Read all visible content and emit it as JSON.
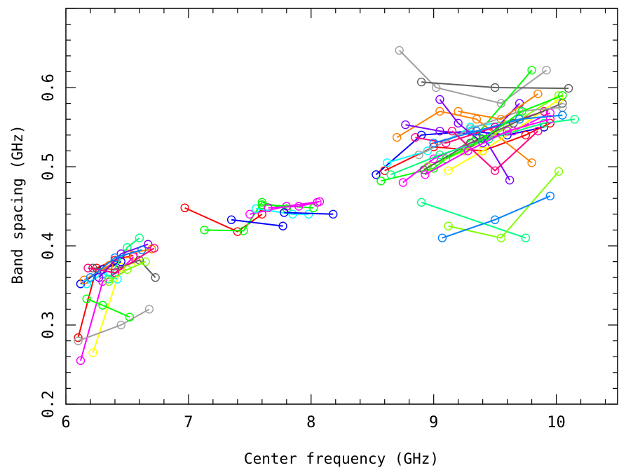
{
  "chart_data": {
    "type": "line",
    "title": "",
    "xlabel": "Center frequency (GHz)",
    "ylabel": "Band spacing (GHz)",
    "xlim": [
      6.0,
      10.5
    ],
    "ylim": [
      0.2,
      0.7
    ],
    "x_ticks": [
      6,
      7,
      8,
      9,
      10
    ],
    "y_ticks": [
      0.2,
      0.3,
      0.4,
      0.5,
      0.6
    ],
    "x_tick_labels": [
      "6",
      "7",
      "8",
      "9",
      "10"
    ],
    "y_tick_labels": [
      "0.2",
      "0.3",
      "0.4",
      "0.5",
      "0.6"
    ],
    "grid": false,
    "legend": "none",
    "marker": "open-circle",
    "series": [
      {
        "color": "#ff0000",
        "points": [
          [
            6.1,
            0.284
          ],
          [
            6.25,
            0.372
          ],
          [
            6.4,
            0.382
          ],
          [
            6.55,
            0.388
          ]
        ]
      },
      {
        "color": "#ff00ff",
        "points": [
          [
            6.12,
            0.255
          ],
          [
            6.3,
            0.355
          ],
          [
            6.45,
            0.37
          ],
          [
            6.55,
            0.386
          ]
        ]
      },
      {
        "color": "#ffff00",
        "points": [
          [
            6.22,
            0.265
          ],
          [
            6.45,
            0.373
          ],
          [
            6.58,
            0.38
          ]
        ]
      },
      {
        "color": "#a0a0a0",
        "points": [
          [
            6.1,
            0.28
          ],
          [
            6.45,
            0.3
          ],
          [
            6.68,
            0.32
          ]
        ]
      },
      {
        "color": "#00ff00",
        "points": [
          [
            6.17,
            0.333
          ],
          [
            6.3,
            0.325
          ],
          [
            6.52,
            0.31
          ]
        ]
      },
      {
        "color": "#0000ff",
        "points": [
          [
            6.12,
            0.352
          ],
          [
            6.3,
            0.37
          ],
          [
            6.45,
            0.38
          ]
        ]
      },
      {
        "color": "#00ffff",
        "points": [
          [
            6.17,
            0.352
          ],
          [
            6.3,
            0.365
          ],
          [
            6.42,
            0.358
          ]
        ]
      },
      {
        "color": "#606060",
        "points": [
          [
            6.22,
            0.372
          ],
          [
            6.4,
            0.37
          ],
          [
            6.6,
            0.382
          ],
          [
            6.73,
            0.36
          ]
        ]
      },
      {
        "color": "#ff8000",
        "points": [
          [
            6.15,
            0.357
          ],
          [
            6.35,
            0.375
          ],
          [
            6.5,
            0.39
          ],
          [
            6.7,
            0.396
          ]
        ]
      },
      {
        "color": "#00ff80",
        "points": [
          [
            6.35,
            0.358
          ],
          [
            6.5,
            0.398
          ],
          [
            6.6,
            0.41
          ]
        ]
      },
      {
        "color": "#8000ff",
        "points": [
          [
            6.27,
            0.36
          ],
          [
            6.45,
            0.39
          ],
          [
            6.67,
            0.402
          ]
        ]
      },
      {
        "color": "#ff0080",
        "points": [
          [
            6.18,
            0.372
          ],
          [
            6.4,
            0.366
          ],
          [
            6.72,
            0.397
          ]
        ]
      },
      {
        "color": "#80ff00",
        "points": [
          [
            6.35,
            0.355
          ],
          [
            6.5,
            0.37
          ],
          [
            6.65,
            0.38
          ]
        ]
      },
      {
        "color": "#0080ff",
        "points": [
          [
            6.2,
            0.36
          ],
          [
            6.4,
            0.385
          ],
          [
            6.62,
            0.395
          ]
        ]
      },
      {
        "color": "#ff0000",
        "points": [
          [
            6.97,
            0.448
          ],
          [
            7.4,
            0.418
          ],
          [
            7.6,
            0.44
          ]
        ]
      },
      {
        "color": "#00ff00",
        "points": [
          [
            7.13,
            0.42
          ],
          [
            7.45,
            0.419
          ],
          [
            7.6,
            0.455
          ],
          [
            7.8,
            0.447
          ]
        ]
      },
      {
        "color": "#0000ff",
        "points": [
          [
            7.35,
            0.433
          ],
          [
            7.77,
            0.425
          ]
        ]
      },
      {
        "color": "#ff00ff",
        "points": [
          [
            7.5,
            0.44
          ],
          [
            7.8,
            0.45
          ],
          [
            8.07,
            0.456
          ]
        ]
      },
      {
        "color": "#00ffff",
        "points": [
          [
            7.55,
            0.447
          ],
          [
            7.85,
            0.44
          ],
          [
            7.98,
            0.44
          ]
        ]
      },
      {
        "color": "#0000ff",
        "points": [
          [
            7.78,
            0.442
          ],
          [
            8.18,
            0.44
          ]
        ]
      },
      {
        "color": "#00ff00",
        "points": [
          [
            7.6,
            0.452
          ],
          [
            8.02,
            0.448
          ]
        ]
      },
      {
        "color": "#ff00ff",
        "points": [
          [
            7.65,
            0.448
          ],
          [
            7.9,
            0.45
          ],
          [
            8.05,
            0.455
          ]
        ]
      },
      {
        "color": "#a0a0a0",
        "points": [
          [
            8.72,
            0.647
          ],
          [
            9.02,
            0.6
          ],
          [
            9.55,
            0.58
          ],
          [
            9.92,
            0.622
          ]
        ]
      },
      {
        "color": "#606060",
        "points": [
          [
            8.9,
            0.607
          ],
          [
            9.5,
            0.6
          ],
          [
            10.1,
            0.599
          ]
        ]
      },
      {
        "color": "#00ff80",
        "points": [
          [
            8.9,
            0.455
          ],
          [
            9.75,
            0.41
          ]
        ]
      },
      {
        "color": "#80ff00",
        "points": [
          [
            9.12,
            0.425
          ],
          [
            9.55,
            0.41
          ],
          [
            10.02,
            0.494
          ]
        ]
      },
      {
        "color": "#0080ff",
        "points": [
          [
            9.07,
            0.41
          ],
          [
            9.5,
            0.433
          ],
          [
            9.95,
            0.463
          ]
        ]
      },
      {
        "color": "#0000ff",
        "points": [
          [
            8.53,
            0.49
          ],
          [
            8.9,
            0.54
          ],
          [
            9.3,
            0.545
          ],
          [
            9.6,
            0.54
          ],
          [
            9.9,
            0.55
          ]
        ]
      },
      {
        "color": "#ff0000",
        "points": [
          [
            8.6,
            0.495
          ],
          [
            9.0,
            0.525
          ],
          [
            9.4,
            0.52
          ],
          [
            9.75,
            0.54
          ],
          [
            9.95,
            0.555
          ]
        ]
      },
      {
        "color": "#00ff00",
        "points": [
          [
            8.57,
            0.482
          ],
          [
            9.0,
            0.498
          ],
          [
            9.35,
            0.54
          ],
          [
            9.8,
            0.622
          ]
        ]
      },
      {
        "color": "#ff00ff",
        "points": [
          [
            8.75,
            0.48
          ],
          [
            9.0,
            0.51
          ],
          [
            9.3,
            0.53
          ],
          [
            9.65,
            0.545
          ],
          [
            9.95,
            0.568
          ]
        ]
      },
      {
        "color": "#00ffff",
        "points": [
          [
            8.62,
            0.505
          ],
          [
            8.95,
            0.52
          ],
          [
            9.3,
            0.55
          ],
          [
            9.7,
            0.56
          ],
          [
            10.05,
            0.565
          ]
        ]
      },
      {
        "color": "#ff8000",
        "points": [
          [
            8.7,
            0.537
          ],
          [
            9.05,
            0.57
          ],
          [
            9.35,
            0.56
          ],
          [
            9.8,
            0.505
          ]
        ]
      },
      {
        "color": "#8000ff",
        "points": [
          [
            8.77,
            0.553
          ],
          [
            9.05,
            0.545
          ],
          [
            9.4,
            0.54
          ],
          [
            9.62,
            0.483
          ]
        ]
      },
      {
        "color": "#ff0080",
        "points": [
          [
            8.85,
            0.537
          ],
          [
            9.1,
            0.53
          ],
          [
            9.5,
            0.55
          ],
          [
            9.9,
            0.57
          ]
        ]
      },
      {
        "color": "#80ff00",
        "points": [
          [
            8.95,
            0.5
          ],
          [
            9.25,
            0.52
          ],
          [
            9.6,
            0.55
          ],
          [
            10.02,
            0.59
          ]
        ]
      },
      {
        "color": "#ffff00",
        "points": [
          [
            9.12,
            0.495
          ],
          [
            9.4,
            0.52
          ],
          [
            9.75,
            0.555
          ],
          [
            10.02,
            0.585
          ]
        ]
      },
      {
        "color": "#606060",
        "points": [
          [
            8.92,
            0.496
          ],
          [
            9.3,
            0.53
          ],
          [
            9.65,
            0.555
          ],
          [
            10.05,
            0.58
          ]
        ]
      },
      {
        "color": "#a0a0a0",
        "points": [
          [
            8.88,
            0.515
          ],
          [
            9.3,
            0.548
          ],
          [
            9.7,
            0.57
          ],
          [
            10.05,
            0.575
          ]
        ]
      },
      {
        "color": "#00ff80",
        "points": [
          [
            8.65,
            0.49
          ],
          [
            9.05,
            0.515
          ],
          [
            9.45,
            0.535
          ],
          [
            9.9,
            0.555
          ],
          [
            10.15,
            0.56
          ]
        ]
      },
      {
        "color": "#8000ff",
        "points": [
          [
            9.05,
            0.585
          ],
          [
            9.2,
            0.555
          ],
          [
            9.4,
            0.53
          ],
          [
            9.7,
            0.58
          ]
        ]
      },
      {
        "color": "#0080ff",
        "points": [
          [
            9.0,
            0.53
          ],
          [
            9.35,
            0.545
          ],
          [
            9.7,
            0.56
          ],
          [
            10.05,
            0.565
          ]
        ]
      },
      {
        "color": "#ff0080",
        "points": [
          [
            9.15,
            0.545
          ],
          [
            9.5,
            0.495
          ],
          [
            9.85,
            0.545
          ]
        ]
      },
      {
        "color": "#ff8000",
        "points": [
          [
            9.2,
            0.57
          ],
          [
            9.55,
            0.56
          ],
          [
            9.85,
            0.592
          ]
        ]
      },
      {
        "color": "#00ff00",
        "points": [
          [
            9.1,
            0.51
          ],
          [
            9.4,
            0.535
          ],
          [
            9.72,
            0.57
          ],
          [
            10.05,
            0.59
          ]
        ]
      },
      {
        "color": "#ff00ff",
        "points": [
          [
            8.93,
            0.49
          ],
          [
            9.28,
            0.52
          ],
          [
            9.6,
            0.545
          ],
          [
            9.95,
            0.56
          ]
        ]
      }
    ]
  }
}
